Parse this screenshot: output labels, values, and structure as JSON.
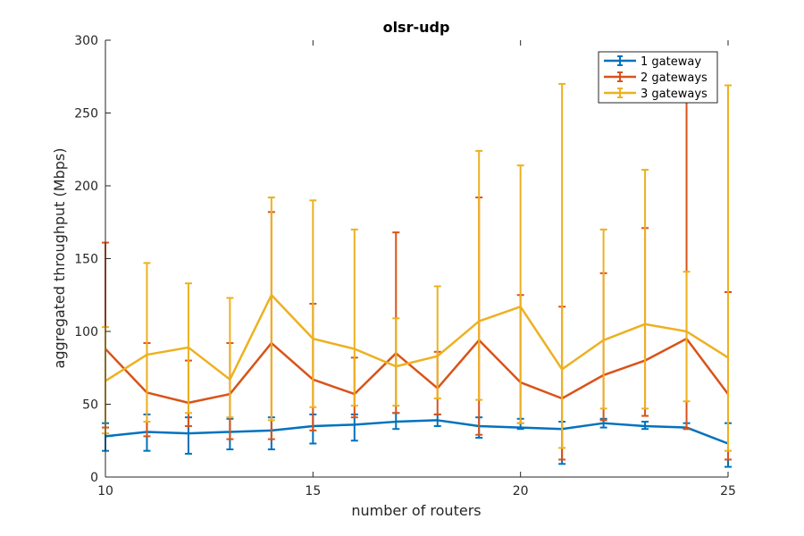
{
  "chart_data": {
    "type": "line",
    "title": "olsr-udp",
    "xlabel": "number of routers",
    "ylabel": "aggregated throughput (Mbps)",
    "xlim": [
      10,
      25
    ],
    "ylim": [
      0,
      300
    ],
    "x": [
      10,
      11,
      12,
      13,
      14,
      15,
      16,
      17,
      18,
      19,
      20,
      21,
      22,
      23,
      24,
      25
    ],
    "xticks": [
      10,
      15,
      20,
      25
    ],
    "yticks": [
      0,
      50,
      100,
      150,
      200,
      250,
      300
    ],
    "grid": false,
    "legend_position": "top-right",
    "series": [
      {
        "name": "1 gateway",
        "color": "#0072BD",
        "values": [
          28,
          31,
          30,
          31,
          32,
          35,
          36,
          38,
          39,
          35,
          34,
          33,
          37,
          35,
          34,
          23
        ],
        "err_low": [
          18,
          18,
          16,
          19,
          19,
          23,
          25,
          33,
          35,
          27,
          33,
          9,
          34,
          33,
          33,
          7
        ],
        "err_high": [
          37,
          43,
          41,
          40,
          41,
          43,
          43,
          44,
          43,
          41,
          40,
          38,
          40,
          38,
          37,
          37
        ]
      },
      {
        "name": "2 gateways",
        "color": "#D95319",
        "values": [
          88,
          58,
          51,
          57,
          92,
          67,
          57,
          85,
          61,
          94,
          65,
          54,
          70,
          80,
          95,
          57
        ],
        "err_low": [
          34,
          28,
          35,
          26,
          26,
          32,
          41,
          44,
          43,
          29,
          37,
          12,
          39,
          42,
          33,
          12
        ],
        "err_high": [
          161,
          92,
          80,
          92,
          182,
          119,
          82,
          168,
          86,
          192,
          125,
          117,
          140,
          171,
          264,
          127
        ]
      },
      {
        "name": "3 gateways",
        "color": "#EDB120",
        "values": [
          66,
          84,
          89,
          67,
          125,
          95,
          88,
          76,
          83,
          107,
          117,
          74,
          94,
          105,
          100,
          82
        ],
        "err_low": [
          30,
          38,
          44,
          41,
          39,
          48,
          49,
          49,
          54,
          53,
          37,
          20,
          47,
          47,
          52,
          18
        ],
        "err_high": [
          103,
          147,
          133,
          123,
          192,
          190,
          170,
          109,
          131,
          224,
          214,
          270,
          170,
          211,
          141,
          269
        ]
      }
    ]
  }
}
